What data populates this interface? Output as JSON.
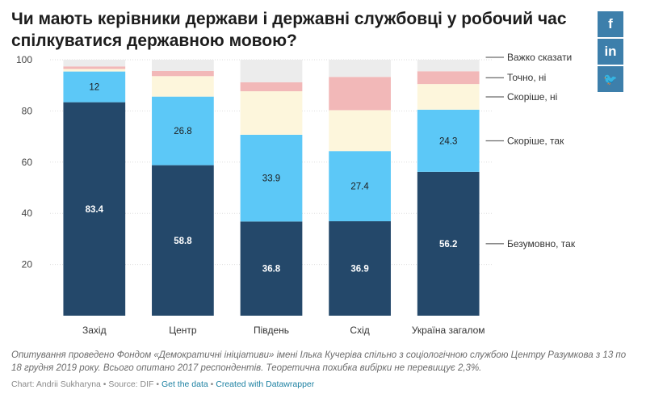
{
  "title": "Чи мають керівники держави і державні службовці у робочий час спілкуватися державною мовою?",
  "social": {
    "facebook": "f",
    "linkedin": "in",
    "twitter": "🐦"
  },
  "chart_data": {
    "type": "bar",
    "stacked": true,
    "categories": [
      "Захід",
      "Центр",
      "Південь",
      "Схід",
      "Україна загалом"
    ],
    "ylim": [
      0,
      100
    ],
    "yticks": [
      20,
      40,
      60,
      80,
      100
    ],
    "grid": true,
    "legend": "right, labelled at stack ends",
    "series": [
      {
        "name": "Безумовно, так",
        "color": "#24486a",
        "values": [
          83.4,
          58.8,
          36.8,
          36.9,
          56.2
        ],
        "labels": [
          "83.4",
          "58.8",
          "36.8",
          "36.9",
          "56.2"
        ],
        "label_color": "#ffffff"
      },
      {
        "name": "Скоріше, так",
        "color": "#5cc8f7",
        "values": [
          12,
          26.8,
          33.9,
          27.4,
          24.3
        ],
        "labels": [
          "12",
          "26.8",
          "33.9",
          "27.4",
          "24.3"
        ],
        "label_color": "#1d1d1d"
      },
      {
        "name": "Скоріше, ні",
        "color": "#fdf6dc",
        "values": [
          1,
          8,
          17,
          16,
          10
        ],
        "labels": [],
        "label_color": "#1d1d1d"
      },
      {
        "name": "Точно, ні",
        "color": "#f2b8b8",
        "values": [
          1,
          2,
          3.5,
          13,
          5
        ],
        "labels": [],
        "label_color": "#1d1d1d"
      },
      {
        "name": "Важко сказати",
        "color": "#ececec",
        "values": [
          2.6,
          4.4,
          8.8,
          6.7,
          4.5
        ],
        "labels": [],
        "label_color": "#1d1d1d"
      }
    ]
  },
  "footer": {
    "note": "Опитування проведено Фондом «Демократичні ініціативи» імені Ілька Кучеріва спільно з соціологічною службою Центру Разумкова з 13 по 18 грудня 2019 року. Всього опитано 2017 респондентів. Теоретична похибка вибірки не перевищує 2,3%.",
    "credit": "Chart: Andrii Sukharyna • Source: DIF •",
    "get_data": "Get the data",
    "sep": "•",
    "created_with": "Created with Datawrapper"
  }
}
